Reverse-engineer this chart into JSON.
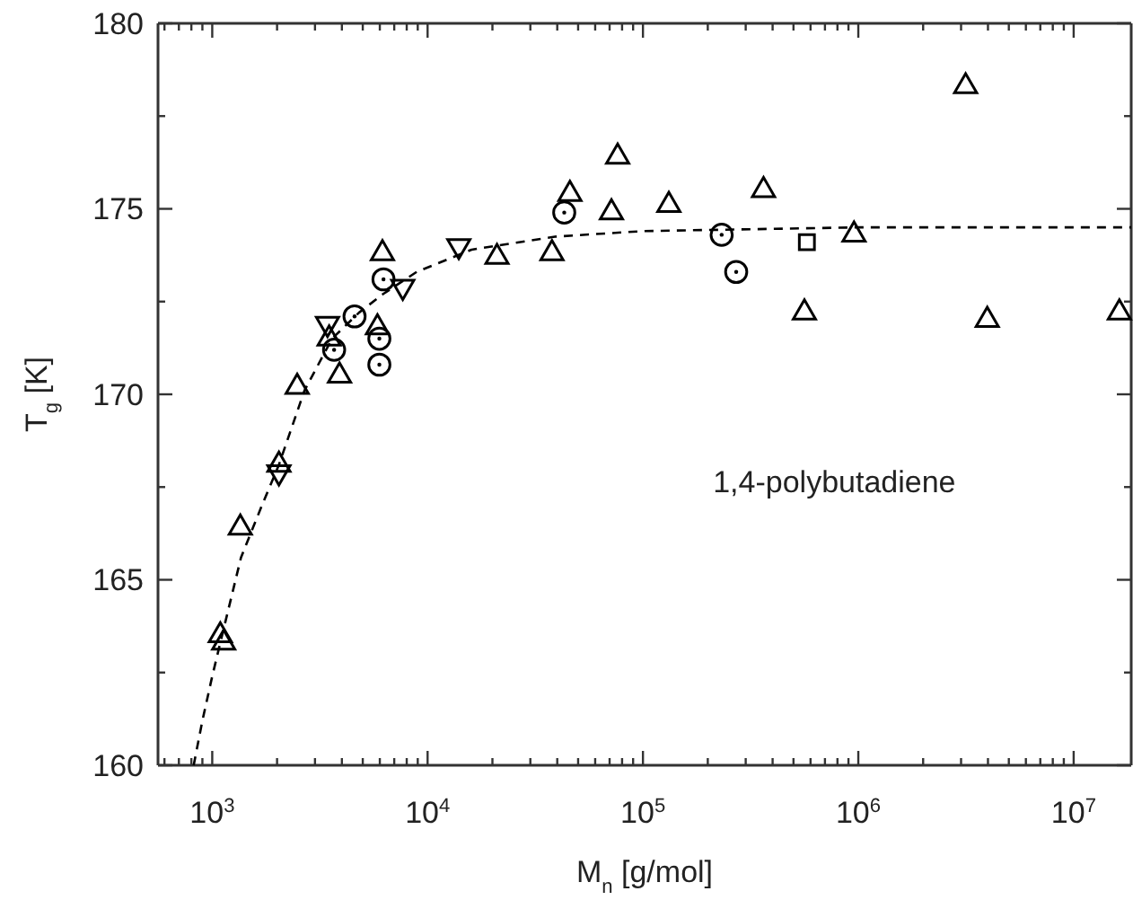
{
  "chart_data": {
    "type": "scatter",
    "xlabel": "M$_{n}$  [g/mol]",
    "ylabel": "T$_{g}$ [K]",
    "log": "x",
    "grid": false,
    "xlim": [
      560,
      18500000
    ],
    "ylim": [
      160,
      180
    ],
    "xticks": [
      {
        "value": 600,
        "label": null
      },
      {
        "value": 700,
        "label": null
      },
      {
        "value": 800,
        "label": null
      },
      {
        "value": 900,
        "label": null
      },
      {
        "value": 1000,
        "label": "10$^{3}$"
      },
      {
        "value": 2000,
        "label": null
      },
      {
        "value": 3000,
        "label": null
      },
      {
        "value": 4000,
        "label": null
      },
      {
        "value": 5000,
        "label": null
      },
      {
        "value": 6000,
        "label": null
      },
      {
        "value": 7000,
        "label": null
      },
      {
        "value": 8000,
        "label": null
      },
      {
        "value": 9000,
        "label": null
      },
      {
        "value": 10000,
        "label": "10$^{4}$"
      },
      {
        "value": 20000,
        "label": null
      },
      {
        "value": 30000,
        "label": null
      },
      {
        "value": 40000,
        "label": null
      },
      {
        "value": 50000,
        "label": null
      },
      {
        "value": 60000,
        "label": null
      },
      {
        "value": 70000,
        "label": null
      },
      {
        "value": 80000,
        "label": null
      },
      {
        "value": 90000,
        "label": null
      },
      {
        "value": 100000,
        "label": "10$^{5}$"
      },
      {
        "value": 200000,
        "label": null
      },
      {
        "value": 300000,
        "label": null
      },
      {
        "value": 400000,
        "label": null
      },
      {
        "value": 500000,
        "label": null
      },
      {
        "value": 600000,
        "label": null
      },
      {
        "value": 700000,
        "label": null
      },
      {
        "value": 800000,
        "label": null
      },
      {
        "value": 900000,
        "label": null
      },
      {
        "value": 1000000,
        "label": "10$^{6}$"
      },
      {
        "value": 2000000,
        "label": null
      },
      {
        "value": 3000000,
        "label": null
      },
      {
        "value": 4000000,
        "label": null
      },
      {
        "value": 5000000,
        "label": null
      },
      {
        "value": 6000000,
        "label": null
      },
      {
        "value": 7000000,
        "label": null
      },
      {
        "value": 8000000,
        "label": null
      },
      {
        "value": 9000000,
        "label": null
      },
      {
        "value": 10000000,
        "label": "10$^{7}$"
      }
    ],
    "yticks": [
      160,
      {
        "value": 162.5,
        "label": null
      },
      165,
      {
        "value": 167.5,
        "label": null
      },
      170,
      {
        "value": 172.5,
        "label": null
      },
      175,
      {
        "value": 177.5,
        "label": null
      },
      180
    ],
    "annotations": [
      "1,4-polybutadiene"
    ],
    "series": [
      {
        "marker": "triangle",
        "color": "#000000",
        "x": [
          1090,
          1130,
          1350,
          2040,
          2480,
          3490,
          3900,
          5850,
          6170,
          21000,
          37800,
          45800,
          71400,
          76300,
          131900,
          363000,
          562000,
          955000,
          3150000,
          3970000,
          16300000
        ],
        "values": [
          163.5,
          163.3,
          166.4,
          168.1,
          170.2,
          171.5,
          170.5,
          171.8,
          173.8,
          173.7,
          173.8,
          175.4,
          174.9,
          176.4,
          175.1,
          175.5,
          172.2,
          174.3,
          178.3,
          172.0,
          172.2
        ]
      },
      {
        "marker": "triangle-down",
        "color": "#000000",
        "x": [
          2040,
          3430,
          7670,
          13960
        ],
        "values": [
          167.9,
          171.9,
          172.9,
          174.0
        ]
      },
      {
        "marker": "circle",
        "color": "#000000",
        "x": [
          3680,
          4580,
          5970,
          5970,
          6240,
          43100,
          232000,
          271000
        ],
        "values": [
          171.2,
          172.1,
          171.5,
          170.8,
          173.1,
          174.9,
          174.3,
          173.3
        ]
      },
      {
        "marker": "square",
        "color": "#000000",
        "x": [
          577000
        ],
        "values": [
          174.1
        ]
      },
      {
        "type": "line",
        "marker": "none",
        "line_style": "dashed",
        "color": "#000000",
        "x": [
          820,
          900,
          1000,
          1100,
          1360,
          1700,
          2040,
          2680,
          3600,
          4800,
          6200,
          8900,
          16000,
          39000,
          100000,
          1000000,
          18500000
        ],
        "values": [
          160,
          161.2,
          162.4,
          163.4,
          165.6,
          167.0,
          168.1,
          170.1,
          171.5,
          172.2,
          172.7,
          173.3,
          173.9,
          174.25,
          174.4,
          174.5,
          174.5
        ]
      }
    ]
  }
}
